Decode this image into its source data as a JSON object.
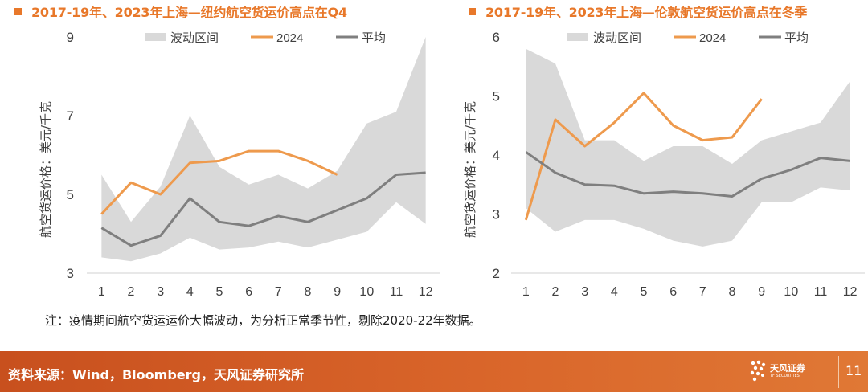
{
  "footer": {
    "source": "资料来源：Wind，Bloomberg，天风证券研究所",
    "logo_text": "天风证券",
    "logo_sub": "TF SECURITIES",
    "page_number": "11"
  },
  "note": "注：疫情期间航空货运运价大幅波动，为分析正常季节性，剔除2020-22年数据。",
  "colors": {
    "accent": "#E8782A",
    "band": "#D9D9D9",
    "series_2024": "#EE9A4D",
    "average": "#7F7F7F"
  },
  "chart_data": [
    {
      "type": "line",
      "title": "2017-19年、2023年上海—纽约航空货运价高点在Q4",
      "ylabel": "航空货运价格：美元/千克",
      "ylim": [
        3,
        9
      ],
      "yticks": [
        3,
        5,
        7,
        9
      ],
      "x": [
        1,
        2,
        3,
        4,
        5,
        6,
        7,
        8,
        9,
        10,
        11,
        12
      ],
      "legend": [
        "波动区间",
        "2024",
        "平均"
      ],
      "legend_position": "top",
      "grid": false,
      "band": {
        "name": "波动区间",
        "upper": [
          5.5,
          4.3,
          5.2,
          7.0,
          5.7,
          5.25,
          5.5,
          5.15,
          5.6,
          6.8,
          7.1,
          9.0
        ],
        "lower": [
          3.4,
          3.3,
          3.5,
          3.9,
          3.6,
          3.65,
          3.8,
          3.65,
          3.85,
          4.05,
          4.8,
          4.25
        ]
      },
      "series": [
        {
          "name": "2024",
          "values": [
            4.5,
            5.3,
            5.0,
            5.8,
            5.85,
            6.1,
            6.1,
            5.85,
            5.5,
            null,
            null,
            null
          ]
        },
        {
          "name": "平均",
          "values": [
            4.15,
            3.7,
            3.95,
            4.9,
            4.3,
            4.2,
            4.45,
            4.3,
            4.6,
            4.9,
            5.5,
            5.55
          ]
        }
      ]
    },
    {
      "type": "line",
      "title": "2017-19年、2023年上海—伦敦航空货运价高点在冬季",
      "ylabel": "航空货运价格：美元/千克",
      "ylim": [
        2,
        6
      ],
      "yticks": [
        2,
        3,
        4,
        5,
        6
      ],
      "x": [
        1,
        2,
        3,
        4,
        5,
        6,
        7,
        8,
        9,
        10,
        11,
        12
      ],
      "legend": [
        "波动区间",
        "2024",
        "平均"
      ],
      "legend_position": "top",
      "grid": false,
      "band": {
        "name": "波动区间",
        "upper": [
          5.8,
          5.55,
          4.25,
          4.25,
          3.9,
          4.15,
          4.15,
          3.85,
          4.25,
          4.4,
          4.55,
          5.25
        ],
        "lower": [
          3.1,
          2.7,
          2.9,
          2.9,
          2.75,
          2.55,
          2.45,
          2.55,
          3.2,
          3.2,
          3.45,
          3.4
        ]
      },
      "series": [
        {
          "name": "2024",
          "values": [
            2.9,
            4.6,
            4.15,
            4.55,
            5.05,
            4.5,
            4.25,
            4.3,
            4.95,
            null,
            null,
            null
          ]
        },
        {
          "name": "平均",
          "values": [
            4.05,
            3.7,
            3.5,
            3.48,
            3.35,
            3.38,
            3.35,
            3.3,
            3.6,
            3.75,
            3.95,
            3.9
          ]
        }
      ]
    }
  ]
}
